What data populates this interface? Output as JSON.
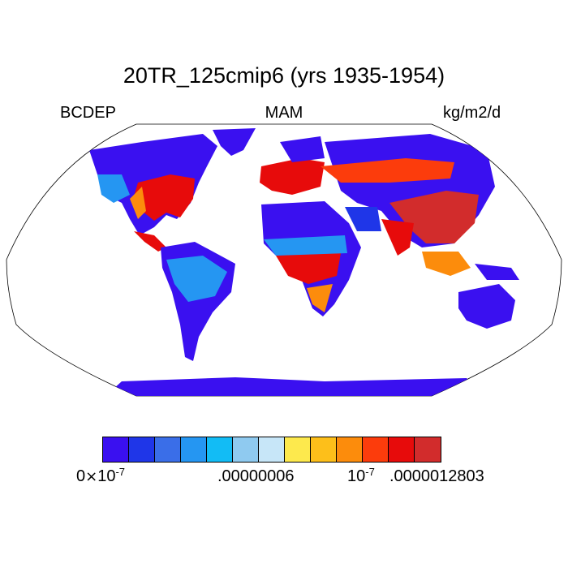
{
  "title": "20TR_125cmip6 (yrs 1935-1954)",
  "subtitles": {
    "left": "BCDEP",
    "center": "MAM",
    "right": "kg/m2/d"
  },
  "colorbar": {
    "colors": [
      "#3a10f0",
      "#1f36e8",
      "#3a6ee8",
      "#2596f2",
      "#12bcf5",
      "#8fcaf0",
      "#c7e6f8",
      "#fde94d",
      "#fdbf1a",
      "#fc8c0c",
      "#fc3c0c",
      "#e70b0b",
      "#d22c2c"
    ],
    "labels": {
      "zero_mantissa": "0",
      "zero_times": "×",
      "zero_base": "10",
      "zero_exp": "-7",
      "mid": ".00000006",
      "high_base": "10",
      "high_exp": "-7",
      "max": ".0000012803"
    }
  },
  "map": {
    "projection": "robinson",
    "ocean_color": "#ffffff",
    "land_colors": {
      "low": "#3a10f0",
      "low2": "#1f36e8",
      "mid_low": "#2596f2",
      "mid": "#12bcf5",
      "yellow": "#fde94d",
      "orange": "#fc8c0c",
      "red": "#e70b0b",
      "dark_red": "#d22c2c"
    }
  }
}
